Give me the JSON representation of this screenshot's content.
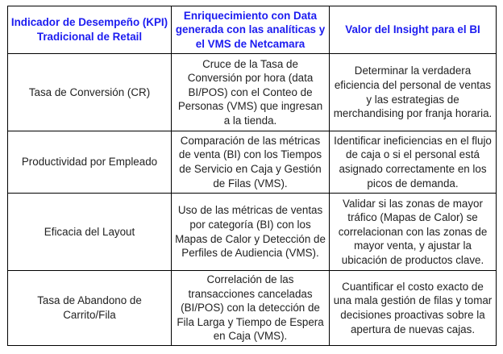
{
  "colors": {
    "header_text": "#1c1cf0",
    "body_text": "#222222",
    "border": "#000000"
  },
  "table": {
    "headers": [
      [
        "Indicador de Desempeño (KPI)",
        "Tradicional de Retail"
      ],
      [
        "Enriquecimiento con Data",
        "generada con las analíticas y",
        "el VMS de Netcamara"
      ],
      [
        "Valor del Insight para el BI"
      ]
    ],
    "rows": [
      [
        [
          "Tasa de Conversión (CR)"
        ],
        [
          "Cruce de la Tasa de",
          "Conversión por hora (data",
          "BI/POS) con el Conteo de",
          "Personas (VMS) que ingresan",
          "a la tienda."
        ],
        [
          "Determinar la verdadera",
          "eficiencia del personal de ventas",
          "y las estrategias de",
          "merchandising por franja horaria."
        ]
      ],
      [
        [
          "Productividad por Empleado"
        ],
        [
          "Comparación de las métricas",
          "de venta (BI) con los Tiempos",
          "de Servicio en Caja y Gestión",
          "de Filas (VMS)."
        ],
        [
          "Identificar ineficiencias en el flujo",
          "de caja o si el personal está",
          "asignado correctamente en los",
          "picos de demanda."
        ]
      ],
      [
        [
          "Eficacia del Layout"
        ],
        [
          "Uso de las métricas de ventas",
          "por categoría (BI) con los",
          "Mapas de Calor y Detección de",
          "Perfiles de Audiencia (VMS)."
        ],
        [
          "Validar si las zonas de mayor",
          "tráfico (Mapas de Calor) se",
          "correlacionan con las zonas de",
          "mayor venta, y ajustar la",
          "ubicación de productos clave."
        ]
      ],
      [
        [
          "Tasa de Abandono de",
          "Carrito/Fila"
        ],
        [
          "Correlación de las",
          "transacciones canceladas",
          "(BI/POS) con la detección de",
          "Fila Larga y Tiempo de Espera",
          "en Caja (VMS)."
        ],
        [
          "Cuantificar el costo exacto de",
          "una mala gestión de filas y tomar",
          "decisiones proactivas sobre la",
          "apertura de nuevas cajas."
        ]
      ]
    ]
  }
}
